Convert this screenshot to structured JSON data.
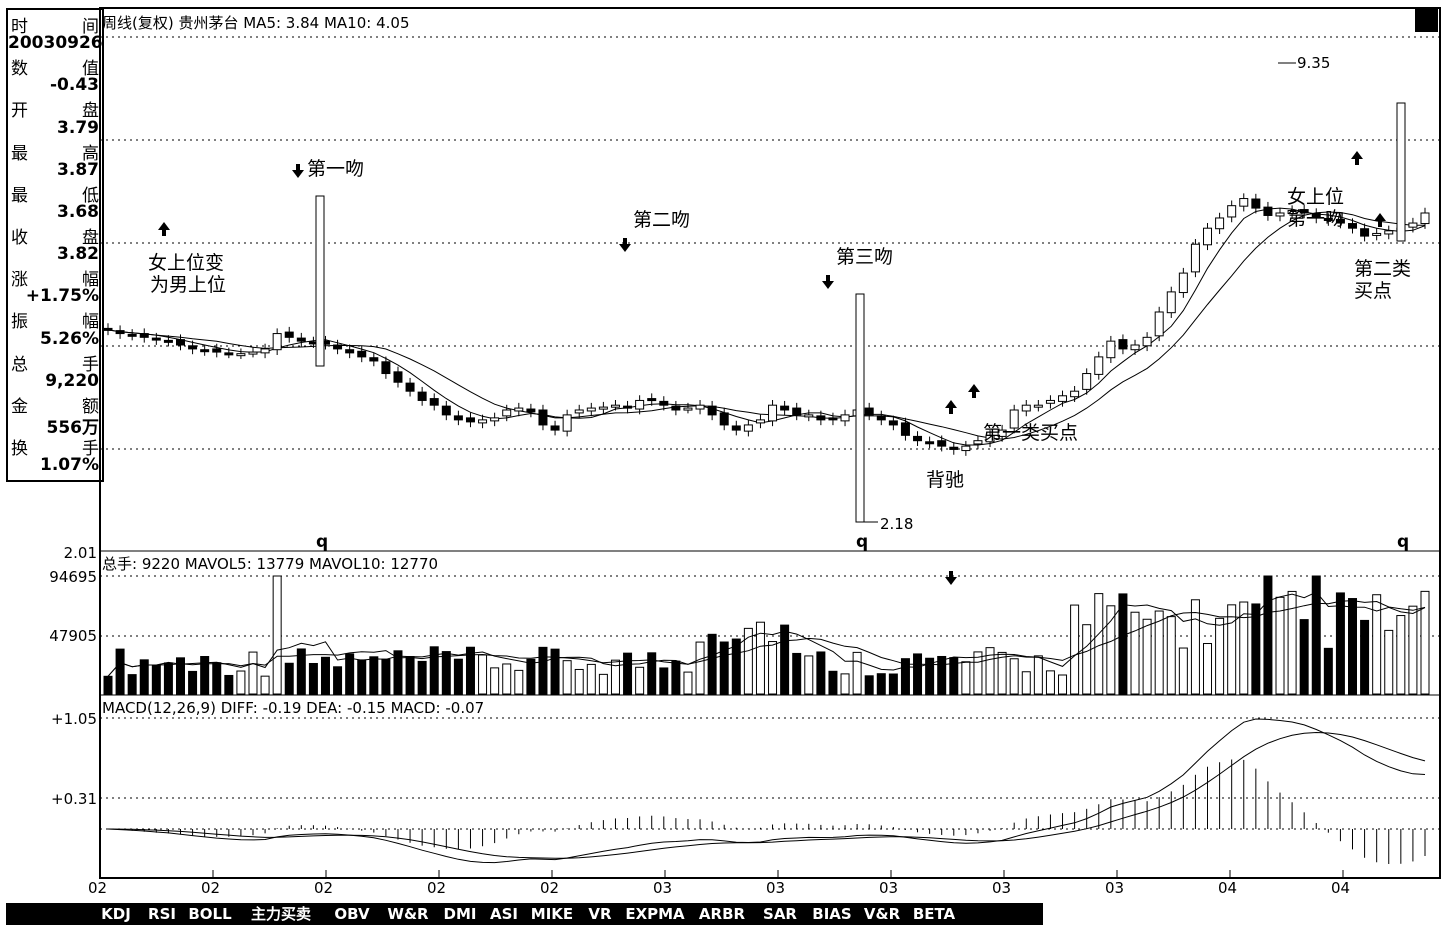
{
  "info_panel": {
    "rows": [
      {
        "left": "时",
        "right": "间"
      },
      {
        "value": "20030926"
      },
      {
        "left": "数",
        "right": "值"
      },
      {
        "value": "-0.43"
      },
      {
        "left": "开",
        "right": "盘"
      },
      {
        "value": "3.79"
      },
      {
        "left": "最",
        "right": "高"
      },
      {
        "value": "3.87"
      },
      {
        "left": "最",
        "right": "低"
      },
      {
        "value": "3.68"
      },
      {
        "left": "收",
        "right": "盘"
      },
      {
        "value": "3.82"
      },
      {
        "left": "涨",
        "right": "幅"
      },
      {
        "value": "+1.75%"
      },
      {
        "left": "振",
        "right": "幅"
      },
      {
        "value": "5.26%"
      },
      {
        "left": "总",
        "right": "手"
      },
      {
        "value": "9,220"
      },
      {
        "left": "金",
        "right": "额"
      },
      {
        "value": "556万"
      },
      {
        "left": "换",
        "right": "手"
      },
      {
        "value": "1.07%"
      }
    ]
  },
  "price_panel": {
    "header": "周线(复权) 贵州茅台 MA5: 3.84 MA10: 4.05",
    "max_label": "9.35",
    "min_label": "2.18",
    "low_axis_label": "2.01",
    "q_marks": [
      "q",
      "q",
      "q"
    ],
    "annotations": [
      {
        "text": "第一吻"
      },
      {
        "text": "第二吻"
      },
      {
        "text": "第三吻"
      },
      {
        "text": "女上位变"
      },
      {
        "text": "为男上位"
      },
      {
        "text": "第一类买点"
      },
      {
        "text": "背驰"
      },
      {
        "text": "女上位"
      },
      {
        "text": "第一吻"
      },
      {
        "text": "第二类"
      },
      {
        "text": "买点"
      }
    ]
  },
  "volume_panel": {
    "header": "总手: 9220 MAVOL5: 13779 MAVOL10: 12770",
    "tick_top": "94695",
    "tick_mid": "47905"
  },
  "macd_panel": {
    "header": "MACD(12,26,9) DIFF: -0.19 DEA: -0.15 MACD: -0.07",
    "tick_top": "+1.05",
    "tick_mid": "+0.31"
  },
  "x_axis": {
    "labels": [
      "02",
      "02",
      "02",
      "02",
      "02",
      "03",
      "03",
      "03",
      "03",
      "03",
      "04",
      "04"
    ]
  },
  "tabs": [
    "KDJ",
    "RSI",
    "BOLL",
    "主力买卖",
    "OBV",
    "W&R",
    "DMI",
    "ASI",
    "MIKE",
    "VR",
    "EXPMA",
    "ARBR",
    "SAR",
    "BIAS",
    "V&R",
    "BETA"
  ],
  "chart_data": {
    "type": "candlestick",
    "title": "周线(复权) 贵州茅台",
    "series_price_close": [
      3.95,
      3.9,
      3.88,
      3.85,
      3.82,
      3.8,
      3.75,
      3.7,
      3.68,
      3.66,
      3.65,
      3.64,
      3.66,
      3.7,
      3.9,
      3.85,
      3.8,
      3.78,
      3.76,
      3.7,
      3.65,
      3.6,
      3.55,
      3.4,
      3.3,
      3.2,
      3.1,
      3.05,
      2.95,
      2.9,
      2.88,
      2.9,
      2.92,
      3.0,
      3.02,
      2.98,
      2.85,
      2.8,
      2.95,
      3.0,
      3.02,
      3.03,
      3.05,
      3.02,
      3.1,
      3.1,
      3.05,
      3.0,
      3.02,
      3.05,
      2.95,
      2.85,
      2.8,
      2.85,
      2.9,
      3.05,
      3.0,
      2.95,
      2.95,
      2.9,
      2.9,
      2.95,
      3.0,
      2.95,
      2.9,
      2.85,
      2.75,
      2.7,
      2.68,
      2.65,
      2.62,
      2.65,
      2.7,
      2.75,
      2.8,
      3.0,
      3.05,
      3.05,
      3.1,
      3.15,
      3.2,
      3.4,
      3.6,
      3.8,
      3.7,
      3.75,
      3.85,
      4.2,
      4.5,
      4.8,
      5.3,
      5.6,
      5.8,
      6.05,
      6.2,
      6.0,
      5.85,
      5.9,
      5.95,
      5.9,
      5.8,
      5.75,
      5.7,
      5.6,
      5.45,
      5.5,
      5.55,
      5.6,
      5.7,
      5.9
    ],
    "ma5": "3.84",
    "ma10": "4.05",
    "price_high": 9.35,
    "price_low": 2.18,
    "volume_ticks": [
      94695,
      47905
    ],
    "macd": {
      "diff": -0.19,
      "dea": -0.15,
      "macd": -0.07,
      "ticks": [
        1.05,
        0.31
      ]
    }
  }
}
